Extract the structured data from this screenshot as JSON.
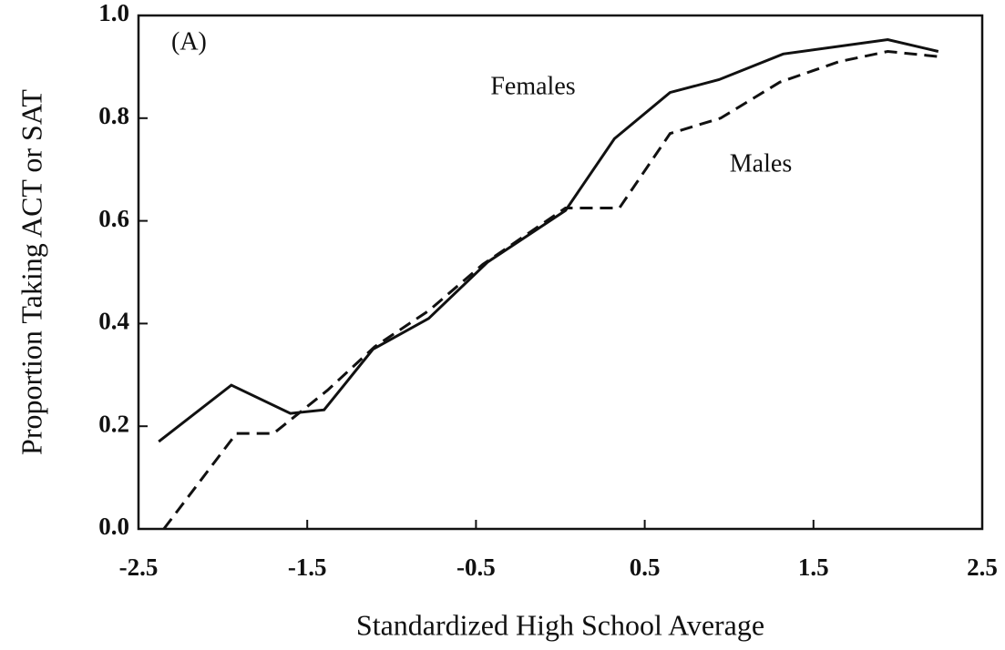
{
  "chart_data": {
    "type": "line",
    "panel_label": "(A)",
    "xlabel": "Standardized High School Average",
    "ylabel": "Proportion Taking ACT or SAT",
    "xlim": [
      -2.5,
      2.5
    ],
    "xticks": [
      -2.5,
      -1.5,
      -0.5,
      0.5,
      1.5,
      2.5
    ],
    "ylim": [
      0,
      1
    ],
    "yticks": [
      {
        "value": 0,
        "label": "0.0"
      },
      0.2,
      0.4,
      0.6,
      0.8,
      {
        "value": 1,
        "label": "1.0"
      }
    ],
    "grid": false,
    "series": [
      {
        "name": "Females",
        "color": "#111111",
        "line_style": "solid",
        "x": [
          -2.38,
          -1.95,
          -1.6,
          -1.4,
          -1.11,
          -0.78,
          -0.43,
          0.03,
          0.32,
          0.65,
          0.94,
          1.32,
          1.94,
          2.24
        ],
        "values": [
          0.17,
          0.28,
          0.225,
          0.232,
          0.35,
          0.41,
          0.52,
          0.62,
          0.76,
          0.85,
          0.875,
          0.925,
          0.953,
          0.93
        ]
      },
      {
        "name": "Males",
        "color": "#111111",
        "line_style": "dashed",
        "x": [
          -2.35,
          -1.92,
          -1.7,
          -1.38,
          -1.1,
          -0.78,
          -0.46,
          0.03,
          0.35,
          0.65,
          0.95,
          1.3,
          1.65,
          1.94,
          2.24
        ],
        "values": [
          0,
          0.186,
          0.186,
          0.27,
          0.355,
          0.425,
          0.515,
          0.625,
          0.625,
          0.77,
          0.8,
          0.87,
          0.91,
          0.93,
          0.92
        ]
      }
    ]
  }
}
